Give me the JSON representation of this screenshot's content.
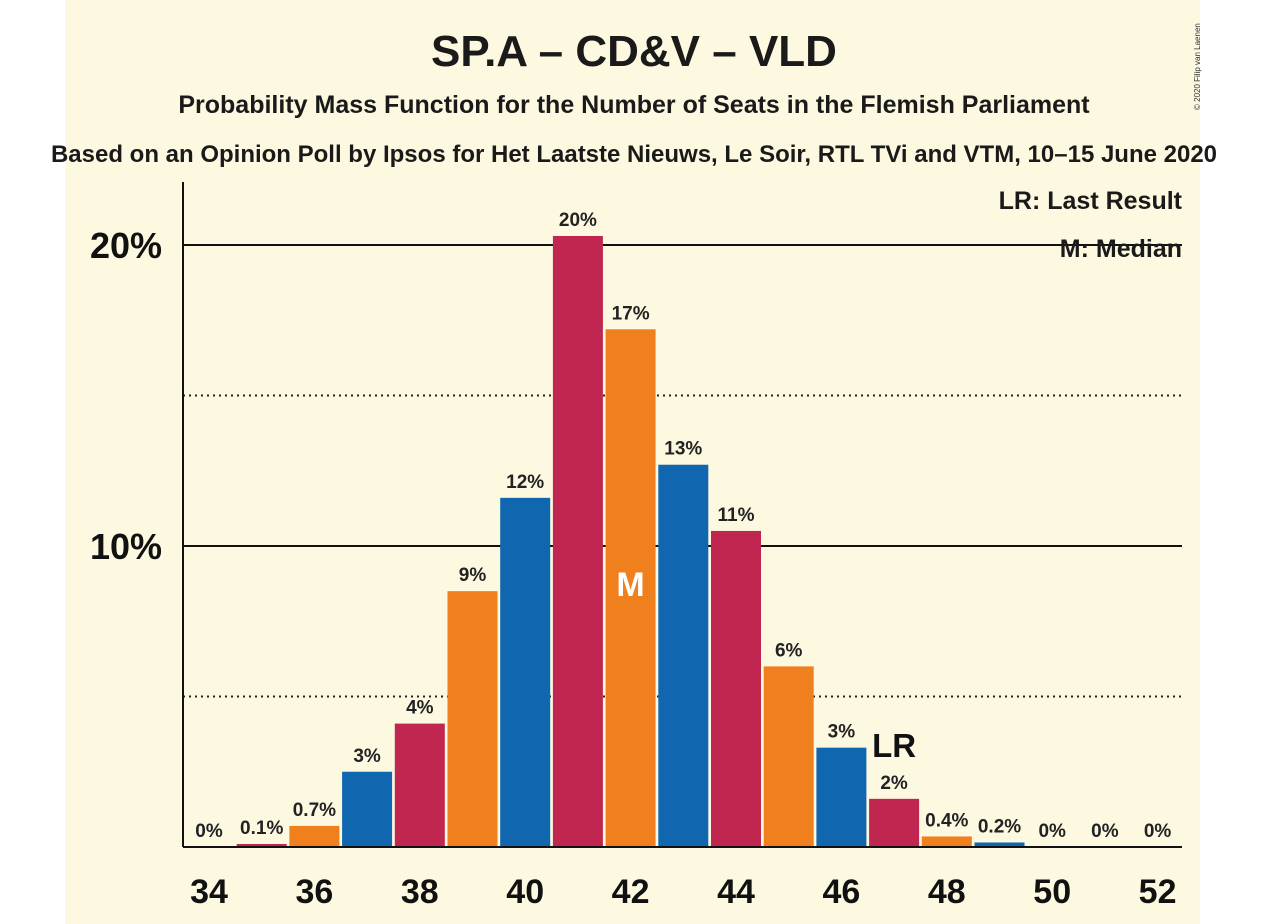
{
  "copyright": "© 2020 Filip van Laenen",
  "chart_data": {
    "type": "bar",
    "title": "SP.A – CD&V – VLD",
    "subtitle": "Probability Mass Function for the Number of Seats in the Flemish Parliament",
    "source": "Based on an Opinion Poll by Ipsos for Het Laatste Nieuws, Le Soir, RTL TVi and VTM, 10–15 June 2020",
    "x": [
      34,
      35,
      36,
      37,
      38,
      39,
      40,
      41,
      42,
      43,
      44,
      45,
      46,
      47,
      48,
      49,
      50,
      51,
      52
    ],
    "values": [
      0,
      0.1,
      0.7,
      2.5,
      4.1,
      8.5,
      11.6,
      20.3,
      17.2,
      12.7,
      10.5,
      6.0,
      3.3,
      1.6,
      0.35,
      0.15,
      0,
      0,
      0
    ],
    "labels": [
      "0%",
      "0.1%",
      "0.7%",
      "3%",
      "4%",
      "9%",
      "12%",
      "20%",
      "17%",
      "13%",
      "11%",
      "6%",
      "3%",
      "2%",
      "0.4%",
      "0.2%",
      "0%",
      "0%",
      "0%"
    ],
    "colors": [
      "#1166b0",
      "#c0264f",
      "#f07f1e"
    ],
    "x_ticks": [
      "34",
      "36",
      "38",
      "40",
      "42",
      "44",
      "46",
      "48",
      "50",
      "52"
    ],
    "y_ticks": [
      "10%",
      "20%"
    ],
    "ylim": [
      0,
      22
    ],
    "median_seat": 42,
    "median_marker": "M",
    "last_result_seat": 47,
    "last_result_marker": "LR",
    "legend": [
      "LR: Last Result",
      "M: Median"
    ],
    "legend_position": "top-right",
    "grid": "solid at 10% and 20%, dotted at 5% and 15%"
  }
}
